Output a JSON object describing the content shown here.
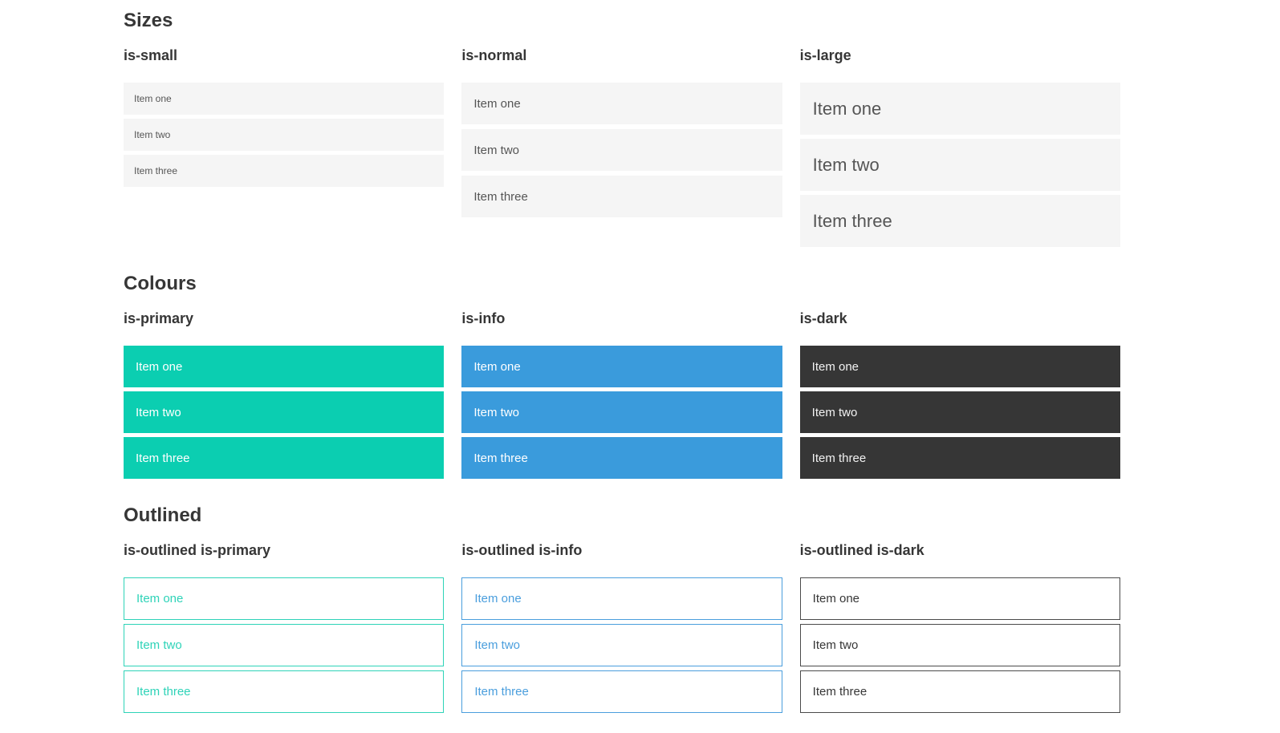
{
  "colors": {
    "heading": "#363636",
    "item_bg": "#f5f5f5",
    "item_text": "#555555",
    "primary": "#0bceb1",
    "info": "#3a9bdc",
    "dark": "#363636",
    "outlined_primary": "#2ed3b8",
    "outlined_info": "#4a9edd",
    "outlined_dark": "#4a4a4a"
  },
  "sections": [
    {
      "title": "Sizes",
      "columns": [
        {
          "heading": "is-small",
          "items": [
            "Item one",
            "Item two",
            "Item three"
          ]
        },
        {
          "heading": "is-normal",
          "items": [
            "Item one",
            "Item two",
            "Item three"
          ]
        },
        {
          "heading": "is-large",
          "items": [
            "Item one",
            "Item two",
            "Item three"
          ]
        }
      ]
    },
    {
      "title": "Colours",
      "columns": [
        {
          "heading": "is-primary",
          "items": [
            "Item one",
            "Item two",
            "Item three"
          ]
        },
        {
          "heading": "is-info",
          "items": [
            "Item one",
            "Item two",
            "Item three"
          ]
        },
        {
          "heading": "is-dark",
          "items": [
            "Item one",
            "Item two",
            "Item three"
          ]
        }
      ]
    },
    {
      "title": "Outlined",
      "columns": [
        {
          "heading": "is-outlined is-primary",
          "items": [
            "Item one",
            "Item two",
            "Item three"
          ]
        },
        {
          "heading": "is-outlined is-info",
          "items": [
            "Item one",
            "Item two",
            "Item three"
          ]
        },
        {
          "heading": "is-outlined is-dark",
          "items": [
            "Item one",
            "Item two",
            "Item three"
          ]
        }
      ]
    }
  ]
}
